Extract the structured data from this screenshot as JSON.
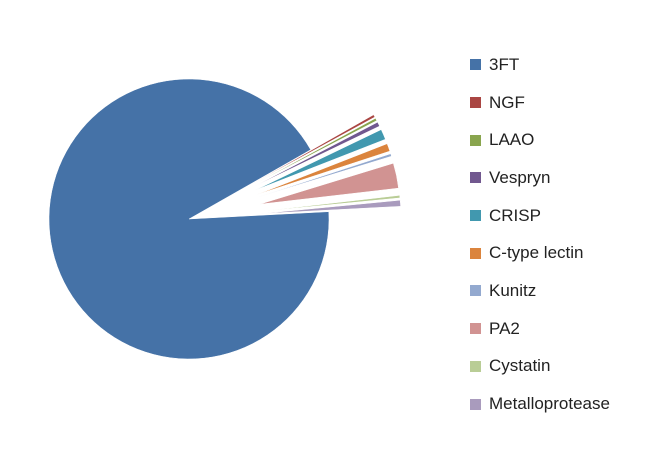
{
  "chart_data": {
    "type": "pie",
    "title": "",
    "labels": [
      "3FT",
      "NGF",
      "LAAO",
      "Vespryn",
      "CRISP",
      "C-type lectin",
      "Kunitz",
      "PA2",
      "Cystatin",
      "Metalloprotease"
    ],
    "values": [
      92.6,
      0.3,
      0.3,
      0.5,
      1.2,
      0.9,
      0.3,
      2.9,
      0.3,
      0.7
    ],
    "unit": "%",
    "colors": [
      "#4572A7",
      "#AA4643",
      "#89A54E",
      "#71588F",
      "#4198AF",
      "#DB843D",
      "#93A9CF",
      "#D19392",
      "#B9CD96",
      "#A99BBD"
    ],
    "exploded": [
      "NGF",
      "LAAO",
      "Vespryn",
      "CRISP",
      "C-type lectin",
      "Kunitz",
      "PA2",
      "Cystatin",
      "Metalloprotease"
    ],
    "start_angle_deg": -3,
    "legend_position": "right",
    "grid": false
  }
}
